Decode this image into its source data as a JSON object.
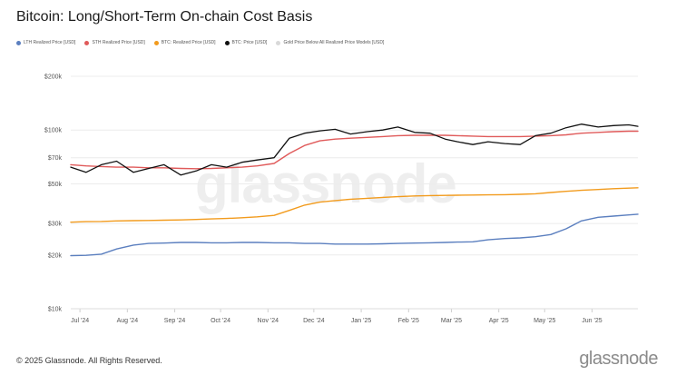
{
  "title": "Bitcoin: Long/Short-Term On-chain Cost Basis",
  "legend": [
    {
      "label": "LTH Realized Price [USD]",
      "color": "#5b7fbf"
    },
    {
      "label": "STH Realized Price [USD]",
      "color": "#e05a5a"
    },
    {
      "label": "BTC: Realized Price [USD]",
      "color": "#f29b1d"
    },
    {
      "label": "BTC: Price [USD]",
      "color": "#111111"
    },
    {
      "label": "Gold Price Below All Realized Price Models [USD]",
      "color": "#d9d9d9"
    }
  ],
  "watermark": "glassnode",
  "footer": "© 2025 Glassnode. All Rights Reserved.",
  "logo": "glassnode",
  "chart_data": {
    "type": "line",
    "y_scale": "log",
    "ylim": [
      10000,
      200000
    ],
    "y_ticks": [
      {
        "value": 10000,
        "label": "$10k"
      },
      {
        "value": 20000,
        "label": "$20k"
      },
      {
        "value": 30000,
        "label": "$30k"
      },
      {
        "value": 50000,
        "label": "$50k"
      },
      {
        "value": 70000,
        "label": "$70k"
      },
      {
        "value": 100000,
        "label": "$100k"
      },
      {
        "value": 200000,
        "label": "$200k"
      }
    ],
    "x_ticks": [
      "Jul '24",
      "Aug '24",
      "Sep '24",
      "Oct '24",
      "Nov '24",
      "Dec '24",
      "Jan '25",
      "Feb '25",
      "Mar '25",
      "Apr '25",
      "May '25",
      "Jun '25"
    ],
    "x": [
      "2024-06-25",
      "2024-07-05",
      "2024-07-15",
      "2024-07-25",
      "2024-08-05",
      "2024-08-15",
      "2024-08-25",
      "2024-09-05",
      "2024-09-15",
      "2024-09-25",
      "2024-10-05",
      "2024-10-15",
      "2024-10-25",
      "2024-11-05",
      "2024-11-15",
      "2024-11-25",
      "2024-12-05",
      "2024-12-15",
      "2024-12-25",
      "2025-01-05",
      "2025-01-15",
      "2025-01-25",
      "2025-02-05",
      "2025-02-15",
      "2025-02-25",
      "2025-03-05",
      "2025-03-15",
      "2025-03-25",
      "2025-04-05",
      "2025-04-15",
      "2025-04-25",
      "2025-05-05",
      "2025-05-15",
      "2025-05-25",
      "2025-06-05",
      "2025-06-15",
      "2025-06-25",
      "2025-07-01"
    ],
    "series": [
      {
        "name": "BTC: Price [USD]",
        "color": "#111111",
        "values": [
          62000,
          58000,
          64000,
          67000,
          58000,
          61000,
          64000,
          56000,
          59000,
          64000,
          62000,
          66000,
          68000,
          70000,
          90000,
          96000,
          99000,
          101000,
          95000,
          98000,
          100000,
          104000,
          97000,
          96000,
          89000,
          86000,
          83000,
          86000,
          84000,
          83000,
          93000,
          96000,
          103000,
          108000,
          104000,
          106000,
          107000,
          105000
        ]
      },
      {
        "name": "STH Realized Price [USD]",
        "color": "#e05a5a",
        "values": [
          64000,
          63000,
          62500,
          62000,
          62000,
          61500,
          61500,
          61000,
          60800,
          61000,
          61500,
          62000,
          63000,
          65000,
          74000,
          82000,
          87000,
          89000,
          90000,
          91000,
          92000,
          93000,
          93500,
          93500,
          93500,
          93000,
          92500,
          92000,
          92000,
          92000,
          92500,
          93000,
          94000,
          96000,
          97000,
          98000,
          98500,
          98500
        ]
      },
      {
        "name": "BTC: Realized Price [USD]",
        "color": "#f29b1d",
        "values": [
          30500,
          30700,
          30800,
          31000,
          31100,
          31200,
          31300,
          31400,
          31600,
          31800,
          32000,
          32300,
          32700,
          33300,
          35500,
          38000,
          39500,
          40300,
          41000,
          41500,
          42000,
          42400,
          42800,
          43000,
          43100,
          43200,
          43300,
          43400,
          43500,
          43700,
          44000,
          44700,
          45400,
          46000,
          46500,
          47000,
          47300,
          47500
        ]
      },
      {
        "name": "LTH Realized Price [USD]",
        "color": "#5b7fbf",
        "values": [
          19800,
          19900,
          20200,
          21600,
          22700,
          23200,
          23300,
          23500,
          23500,
          23400,
          23400,
          23500,
          23500,
          23400,
          23400,
          23200,
          23200,
          23000,
          23000,
          23000,
          23100,
          23200,
          23300,
          23400,
          23500,
          23600,
          23700,
          24300,
          24700,
          24900,
          25300,
          26000,
          28000,
          31000,
          32500,
          33000,
          33500,
          33800
        ]
      }
    ]
  }
}
